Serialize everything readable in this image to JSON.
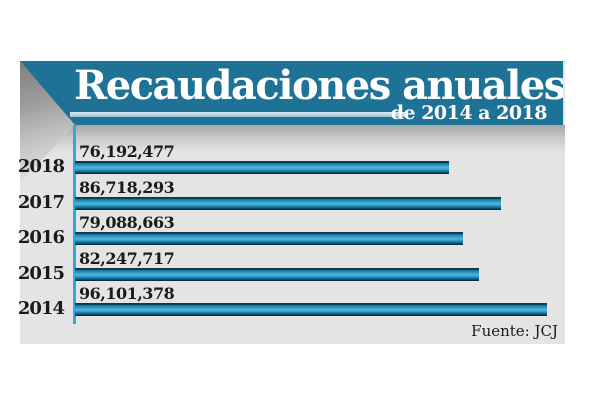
{
  "banner": {
    "title": "Recaudaciones anuales",
    "subtitle": "de 2014 a 2018"
  },
  "source_label": "Fuente: JCJ",
  "colors": {
    "banner": "#1e7296",
    "panel": "#e4e4e4",
    "axis_line": "#2fa8da",
    "bar_main": "#1286b4",
    "rule": "#b7d6e4",
    "text": "#1a1a1a"
  },
  "chart_data": {
    "type": "bar",
    "orientation": "horizontal",
    "title": "Recaudaciones anuales",
    "subtitle": "de 2014 a 2018",
    "source": "Fuente: JCJ",
    "categories": [
      "2018",
      "2017",
      "2016",
      "2015",
      "2014"
    ],
    "values": [
      76192477,
      86718293,
      79088663,
      82247717,
      96101378
    ],
    "value_labels": [
      "76,192,477",
      "86,718,293",
      "79,088,663",
      "82,247,717",
      "96,101,378"
    ],
    "xlim": [
      0,
      96101378
    ],
    "grid": false,
    "legend": false,
    "bar_labels_position": "above-bar",
    "category_labels_position": "left-of-axis"
  }
}
